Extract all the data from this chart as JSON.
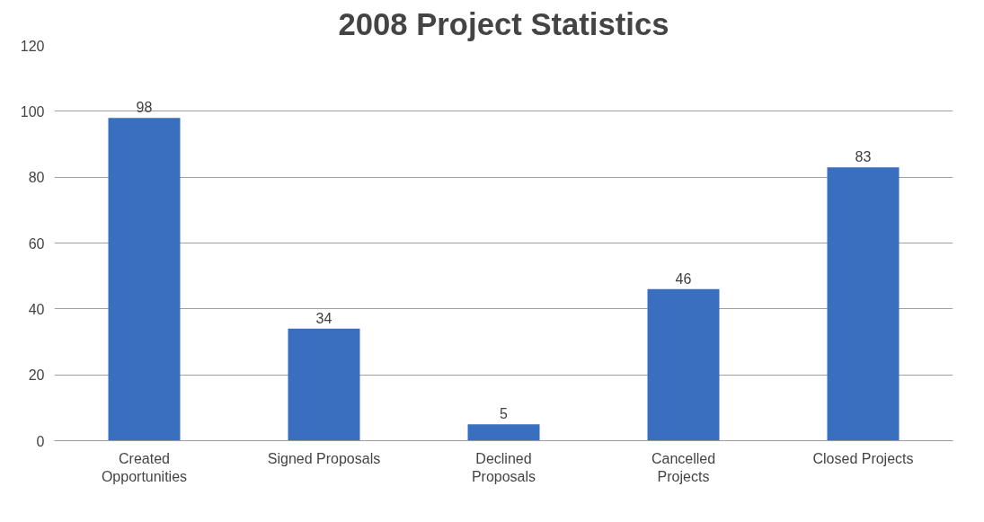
{
  "chart_data": {
    "type": "bar",
    "title": "2008 Project Statistics",
    "categories": [
      "Created Opportunities",
      "Signed Proposals",
      "Declined Proposals",
      "Cancelled Projects",
      "Closed Projects"
    ],
    "values": [
      98,
      34,
      5,
      46,
      83
    ],
    "color": "#3a6fbf",
    "ylim": [
      0,
      120
    ],
    "yticks": [
      0,
      20,
      40,
      60,
      80,
      100,
      120
    ],
    "grid": "y",
    "data_labels": true
  }
}
